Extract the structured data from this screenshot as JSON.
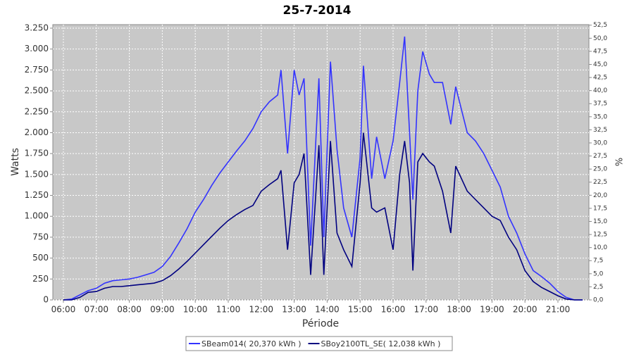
{
  "chart_data": {
    "type": "line",
    "title": "25-7-2014",
    "x_label": "Période",
    "y_label": "Watts",
    "y2_label": "%",
    "x": [
      6.0,
      6.25,
      6.5,
      6.75,
      7.0,
      7.25,
      7.5,
      7.75,
      8.0,
      8.25,
      8.5,
      8.75,
      9.0,
      9.25,
      9.5,
      9.75,
      10.0,
      10.25,
      10.5,
      10.75,
      11.0,
      11.25,
      11.5,
      11.75,
      12.0,
      12.25,
      12.5,
      12.6,
      12.8,
      13.0,
      13.15,
      13.3,
      13.5,
      13.75,
      13.9,
      14.1,
      14.3,
      14.5,
      14.75,
      15.0,
      15.1,
      15.35,
      15.5,
      15.75,
      16.0,
      16.2,
      16.35,
      16.5,
      16.6,
      16.75,
      16.9,
      17.1,
      17.25,
      17.5,
      17.75,
      17.9,
      18.25,
      18.5,
      18.75,
      19.0,
      19.25,
      19.5,
      19.75,
      20.0,
      20.25,
      20.5,
      20.75,
      21.0,
      21.25,
      21.5,
      21.75
    ],
    "series": [
      {
        "name": "SBeam014( 20,370 kWh )",
        "color": "#3333ff",
        "values": [
          0,
          10,
          60,
          110,
          140,
          200,
          230,
          240,
          250,
          270,
          300,
          330,
          400,
          520,
          680,
          850,
          1050,
          1200,
          1370,
          1520,
          1650,
          1780,
          1900,
          2050,
          2250,
          2370,
          2450,
          2750,
          1750,
          2750,
          2450,
          2650,
          650,
          2650,
          750,
          2850,
          1800,
          1100,
          750,
          1700,
          2800,
          1450,
          1950,
          1450,
          1900,
          2600,
          3150,
          2000,
          1200,
          2500,
          2970,
          2700,
          2600,
          2600,
          2100,
          2550,
          2000,
          1900,
          1750,
          1550,
          1350,
          1000,
          800,
          550,
          350,
          280,
          200,
          100,
          30,
          0,
          0
        ]
      },
      {
        "name": "SBoy2100TL_SE( 12,038 kWh )",
        "color": "#000080",
        "values": [
          0,
          0,
          30,
          90,
          100,
          140,
          160,
          160,
          170,
          180,
          190,
          200,
          230,
          290,
          370,
          460,
          560,
          660,
          760,
          860,
          950,
          1020,
          1080,
          1130,
          1300,
          1380,
          1450,
          1550,
          600,
          1400,
          1500,
          1750,
          300,
          1850,
          300,
          1900,
          800,
          600,
          400,
          1400,
          2000,
          1100,
          1050,
          1100,
          600,
          1500,
          1900,
          1400,
          350,
          1650,
          1750,
          1650,
          1600,
          1300,
          800,
          1600,
          1300,
          1200,
          1100,
          1000,
          950,
          750,
          600,
          350,
          220,
          150,
          100,
          50,
          10,
          0,
          0
        ]
      }
    ],
    "xlim": [
      5.68,
      21.94
    ],
    "xticks": [
      {
        "value": 6,
        "label": "06:00"
      },
      {
        "value": 7,
        "label": "07:00"
      },
      {
        "value": 8,
        "label": "08:00"
      },
      {
        "value": 9,
        "label": "09:00"
      },
      {
        "value": 10,
        "label": "10:00"
      },
      {
        "value": 11,
        "label": "11:00"
      },
      {
        "value": 12,
        "label": "12:00"
      },
      {
        "value": 13,
        "label": "13:00"
      },
      {
        "value": 14,
        "label": "14:00"
      },
      {
        "value": 15,
        "label": "15:00"
      },
      {
        "value": 16,
        "label": "16:00"
      },
      {
        "value": 17,
        "label": "17:00"
      },
      {
        "value": 18,
        "label": "18:00"
      },
      {
        "value": 19,
        "label": "19:00"
      },
      {
        "value": 20,
        "label": "20:00"
      },
      {
        "value": 21,
        "label": "21:00"
      }
    ],
    "ylim": [
      0,
      3292
    ],
    "yticks": [
      0,
      250,
      500,
      750,
      {
        "value": 1000,
        "label": "1.000"
      },
      {
        "value": 1250,
        "label": "1.250"
      },
      {
        "value": 1500,
        "label": "1.500"
      },
      {
        "value": 1750,
        "label": "1.750"
      },
      {
        "value": 2000,
        "label": "2.000"
      },
      {
        "value": 2250,
        "label": "2.250"
      },
      {
        "value": 2500,
        "label": "2.500"
      },
      {
        "value": 2750,
        "label": "2.750"
      },
      {
        "value": 3000,
        "label": "3.000"
      },
      {
        "value": 3250,
        "label": "3.250"
      }
    ],
    "y2lim": [
      0,
      52.6
    ],
    "y2ticks": [
      {
        "value": 0,
        "label": "0,0"
      },
      {
        "value": 2.5,
        "label": "2,5"
      },
      {
        "value": 5,
        "label": "5,0"
      },
      {
        "value": 7.5,
        "label": "7,5"
      },
      {
        "value": 10,
        "label": "10,0"
      },
      {
        "value": 12.5,
        "label": "12,5"
      },
      {
        "value": 15,
        "label": "15,0"
      },
      {
        "value": 17.5,
        "label": "17,5"
      },
      {
        "value": 20,
        "label": "20,0"
      },
      {
        "value": 22.5,
        "label": "22,5"
      },
      {
        "value": 25,
        "label": "25,0"
      },
      {
        "value": 27.5,
        "label": "27,5"
      },
      {
        "value": 30,
        "label": "30,0"
      },
      {
        "value": 32.5,
        "label": "32,5"
      },
      {
        "value": 35,
        "label": "35,0"
      },
      {
        "value": 37.5,
        "label": "37,5"
      },
      {
        "value": 40,
        "label": "40,0"
      },
      {
        "value": 42.5,
        "label": "42,5"
      },
      {
        "value": 45,
        "label": "45,0"
      },
      {
        "value": 47.5,
        "label": "47,5"
      },
      {
        "value": 50,
        "label": "50,0"
      },
      {
        "value": 52.5,
        "label": "52,5"
      }
    ],
    "grid": true
  }
}
